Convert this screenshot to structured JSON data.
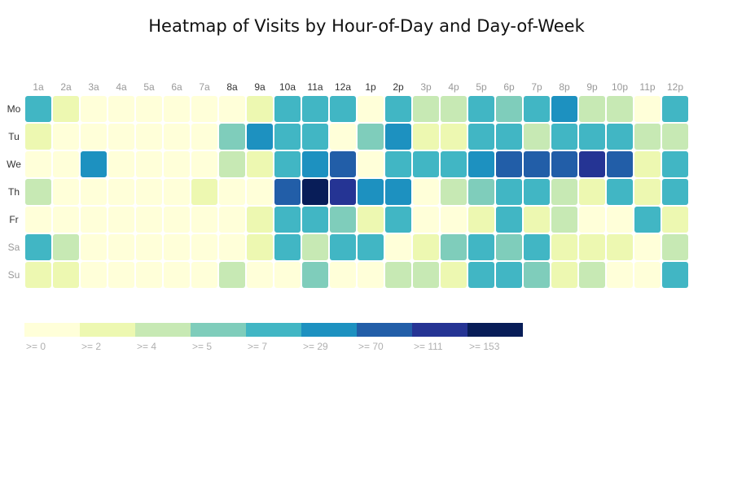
{
  "chart_data": {
    "type": "heatmap",
    "title": "Heatmap of Visits by Hour-of-Day and Day-of-Week",
    "xlabel": "",
    "ylabel": "",
    "x": [
      "1a",
      "2a",
      "3a",
      "4a",
      "5a",
      "6a",
      "7a",
      "8a",
      "9a",
      "10a",
      "11a",
      "12a",
      "1p",
      "2p",
      "3p",
      "4p",
      "5p",
      "6p",
      "7p",
      "8p",
      "9p",
      "10p",
      "11p",
      "12p"
    ],
    "y": [
      "Mo",
      "Tu",
      "We",
      "Th",
      "Fr",
      "Sa",
      "Su"
    ],
    "values": [
      [
        7,
        2,
        0,
        0,
        0,
        0,
        0,
        0,
        2,
        7,
        7,
        7,
        0,
        7,
        4,
        4,
        7,
        5,
        7,
        29,
        4,
        4,
        0,
        7
      ],
      [
        2,
        0,
        0,
        0,
        0,
        0,
        0,
        5,
        29,
        7,
        7,
        0,
        5,
        29,
        2,
        2,
        7,
        7,
        4,
        7,
        7,
        7,
        4,
        4
      ],
      [
        0,
        0,
        29,
        0,
        0,
        0,
        0,
        4,
        2,
        7,
        29,
        70,
        0,
        7,
        7,
        7,
        29,
        70,
        70,
        70,
        111,
        70,
        2,
        7
      ],
      [
        4,
        0,
        0,
        0,
        0,
        0,
        2,
        0,
        0,
        70,
        153,
        111,
        29,
        29,
        0,
        4,
        5,
        7,
        7,
        4,
        2,
        7,
        2,
        7
      ],
      [
        0,
        0,
        0,
        0,
        0,
        0,
        0,
        0,
        2,
        7,
        7,
        5,
        2,
        7,
        0,
        0,
        2,
        7,
        2,
        4,
        0,
        0,
        7,
        2
      ],
      [
        7,
        4,
        0,
        0,
        0,
        0,
        0,
        0,
        2,
        7,
        4,
        7,
        7,
        0,
        2,
        5,
        7,
        5,
        7,
        2,
        2,
        2,
        0,
        4
      ],
      [
        2,
        2,
        0,
        0,
        0,
        0,
        0,
        4,
        0,
        0,
        5,
        0,
        0,
        4,
        4,
        2,
        7,
        7,
        5,
        2,
        4,
        0,
        0,
        7
      ]
    ],
    "legend": {
      "placement": "bottom-left",
      "thresholds": [
        0,
        2,
        4,
        5,
        7,
        29,
        70,
        111,
        153
      ],
      "labels": [
        ">= 0",
        ">= 2",
        ">= 4",
        ">= 5",
        ">= 7",
        ">= 29",
        ">= 70",
        ">= 111",
        ">= 153"
      ],
      "colors": [
        "#ffffd9",
        "#edf8b1",
        "#c7e9b4",
        "#7fcdbb",
        "#41b6c4",
        "#1d91c0",
        "#225ea8",
        "#253494",
        "#081d58"
      ]
    },
    "xtick_dark": [
      "8a",
      "9a",
      "10a",
      "11a",
      "12a",
      "1p",
      "2p"
    ],
    "ytick_light": [
      "Sa",
      "Su"
    ]
  }
}
